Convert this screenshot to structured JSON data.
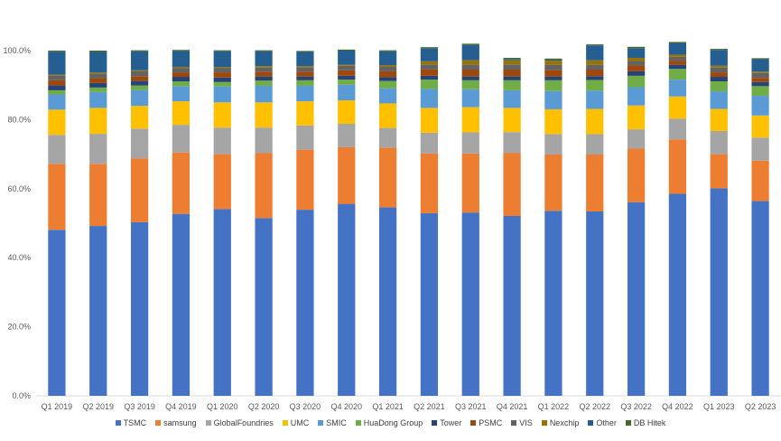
{
  "chart_data": {
    "type": "bar",
    "stacked": true,
    "title": "",
    "xlabel": "",
    "ylabel": "",
    "ylim": [
      0,
      100
    ],
    "yticks": [
      0,
      20,
      40,
      60,
      80,
      100
    ],
    "ytick_labels": [
      "0.0%",
      "20.0%",
      "40.0%",
      "60.0%",
      "80.0%",
      "100.0%"
    ],
    "categories": [
      "Q1 2019",
      "Q2 2019",
      "Q3 2019",
      "Q4 2019",
      "Q1 2020",
      "Q2 2020",
      "Q3 2020",
      "Q4 2020",
      "Q1 2021",
      "Q2 2021",
      "Q3 2021",
      "Q4 2021",
      "Q1 2022",
      "Q2 2022",
      "Q3 2022",
      "Q4 2022",
      "Q1 2023",
      "Q2 2023"
    ],
    "series": [
      {
        "name": "TSMC",
        "color": "#4472C4",
        "values": [
          48.1,
          49.2,
          50.3,
          52.7,
          54.1,
          51.5,
          53.9,
          55.6,
          54.6,
          52.9,
          53.1,
          52.1,
          53.6,
          53.4,
          56.1,
          58.5,
          60.1,
          56.4
        ]
      },
      {
        "name": "samsung",
        "color": "#ED7D31",
        "values": [
          19.1,
          18.0,
          18.5,
          17.8,
          15.9,
          18.8,
          17.4,
          16.4,
          17.3,
          17.3,
          17.1,
          18.3,
          16.3,
          16.5,
          15.5,
          15.8,
          9.9,
          11.7
        ]
      },
      {
        "name": "GlobalFoundries",
        "color": "#A5A5A5",
        "values": [
          8.4,
          8.7,
          8.6,
          8.0,
          7.7,
          7.4,
          7.0,
          6.8,
          5.7,
          6.0,
          6.1,
          6.0,
          5.9,
          5.9,
          5.6,
          6.0,
          6.7,
          6.7
        ]
      },
      {
        "name": "UMC",
        "color": "#FFC000",
        "values": [
          7.3,
          7.5,
          6.6,
          6.8,
          7.3,
          7.3,
          7.0,
          6.8,
          7.1,
          7.2,
          7.3,
          7.0,
          7.2,
          7.3,
          6.9,
          6.4,
          6.4,
          6.4
        ]
      },
      {
        "name": "SMIC",
        "color": "#5B9BD5",
        "values": [
          4.4,
          4.6,
          4.6,
          4.4,
          4.6,
          4.8,
          4.5,
          4.5,
          4.4,
          5.5,
          5.2,
          5.1,
          5.3,
          5.3,
          5.3,
          4.9,
          5.1,
          5.7
        ]
      },
      {
        "name": "HuaDong Group",
        "color": "#70AD47",
        "values": [
          1.2,
          1.3,
          1.3,
          1.4,
          1.3,
          1.5,
          1.6,
          1.5,
          2.1,
          2.7,
          2.6,
          2.9,
          3.1,
          3.1,
          3.3,
          3.1,
          2.9,
          2.8
        ]
      },
      {
        "name": "Tower",
        "color": "#264478",
        "values": [
          1.4,
          1.3,
          1.3,
          1.3,
          1.3,
          1.2,
          1.1,
          1.1,
          1.1,
          1.1,
          1.1,
          1.1,
          1.1,
          1.1,
          1.3,
          1.2,
          1.3,
          1.2
        ]
      },
      {
        "name": "PSMC",
        "color": "#9E480E",
        "values": [
          1.5,
          1.4,
          1.4,
          1.3,
          1.5,
          1.4,
          1.4,
          1.6,
          1.7,
          1.9,
          2.0,
          2.0,
          1.9,
          1.9,
          1.7,
          1.2,
          1.3,
          1.2
        ]
      },
      {
        "name": "VIS",
        "color": "#636363",
        "values": [
          1.3,
          1.4,
          1.4,
          1.3,
          1.2,
          1.2,
          1.3,
          1.3,
          1.4,
          1.4,
          1.5,
          1.5,
          1.5,
          1.4,
          1.3,
          1.1,
          1.4,
          1.4
        ]
      },
      {
        "name": "Nexchip",
        "color": "#997300",
        "values": [
          0.3,
          0.3,
          0.3,
          0.3,
          0.3,
          0.4,
          0.3,
          0.3,
          0.4,
          0.9,
          1.2,
          1.2,
          1.2,
          1.3,
          0.9,
          0.6,
          0.5,
          0.4
        ]
      },
      {
        "name": "Other",
        "color": "#255E91",
        "values": [
          6.7,
          5.9,
          5.5,
          4.6,
          4.6,
          4.3,
          4.1,
          4.1,
          4.0,
          3.8,
          4.4,
          0.4,
          0.3,
          4.3,
          2.8,
          3.3,
          4.6,
          3.6
        ]
      },
      {
        "name": "DB Hitek",
        "color": "#43682B",
        "values": [
          0.3,
          0.4,
          0.3,
          0.3,
          0.3,
          0.3,
          0.3,
          0.3,
          0.3,
          0.3,
          0.4,
          0.3,
          0.3,
          0.3,
          0.4,
          0.4,
          0.3,
          0.3
        ]
      }
    ]
  }
}
